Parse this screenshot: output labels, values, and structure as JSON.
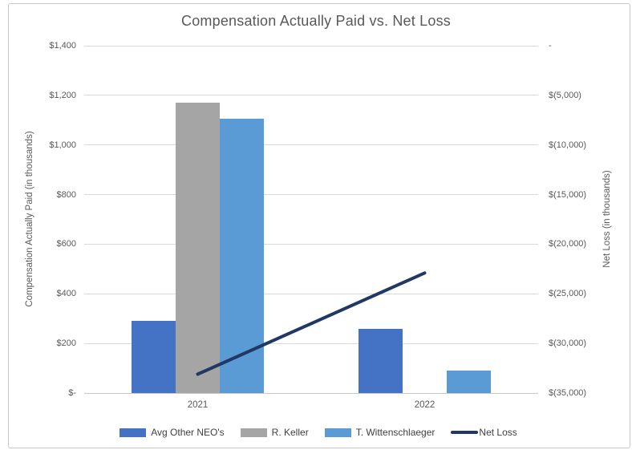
{
  "chart_data": {
    "type": "bar",
    "subtype": "combo-bar-line-two-axes",
    "title": "Compensation Actually Paid vs. Net Loss",
    "categories": [
      "2021",
      "2022"
    ],
    "bar_series": [
      {
        "name": "Avg Other NEO's",
        "color": "#4472C4",
        "values": [
          290,
          260
        ]
      },
      {
        "name": "R. Keller",
        "color": "#A5A5A5",
        "values": [
          1170,
          0
        ]
      },
      {
        "name": "T. Wittenschlaeger",
        "color": "#5B9BD5",
        "values": [
          1105,
          90
        ]
      }
    ],
    "line_series": {
      "name": "Net Loss",
      "color": "#1F3864",
      "values": [
        -33100,
        -22900
      ]
    },
    "left_axis": {
      "title": "Compensation Actually Paid (in thousands)",
      "min": 0,
      "max": 1400,
      "step": 200,
      "tick_labels_top_to_bottom": [
        "$1,400",
        "$1,200",
        "$1,000",
        "$800",
        "$600",
        "$400",
        "$200",
        "$-"
      ]
    },
    "right_axis": {
      "title": "Net Loss (in thousands)",
      "min": -35000,
      "max": 0,
      "step": 5000,
      "tick_labels_top_to_bottom": [
        "-",
        "$(5,000)",
        "$(10,000)",
        "$(15,000)",
        "$(20,000)",
        "$(25,000)",
        "$(30,000)",
        "$(35,000)"
      ]
    },
    "legend": {
      "position": "bottom",
      "entries": [
        "Avg Other NEO's",
        "R. Keller",
        "T. Wittenschlaeger",
        "Net Loss"
      ]
    },
    "grid": true,
    "colors": {
      "gridline": "#D9D9D9",
      "axis_line": "#C6C6C6",
      "title_text": "#595959",
      "axis_text": "#595959",
      "legend_text": "#404040",
      "frame_border": "#C9C7C5",
      "background": "#FFFFFF"
    }
  }
}
